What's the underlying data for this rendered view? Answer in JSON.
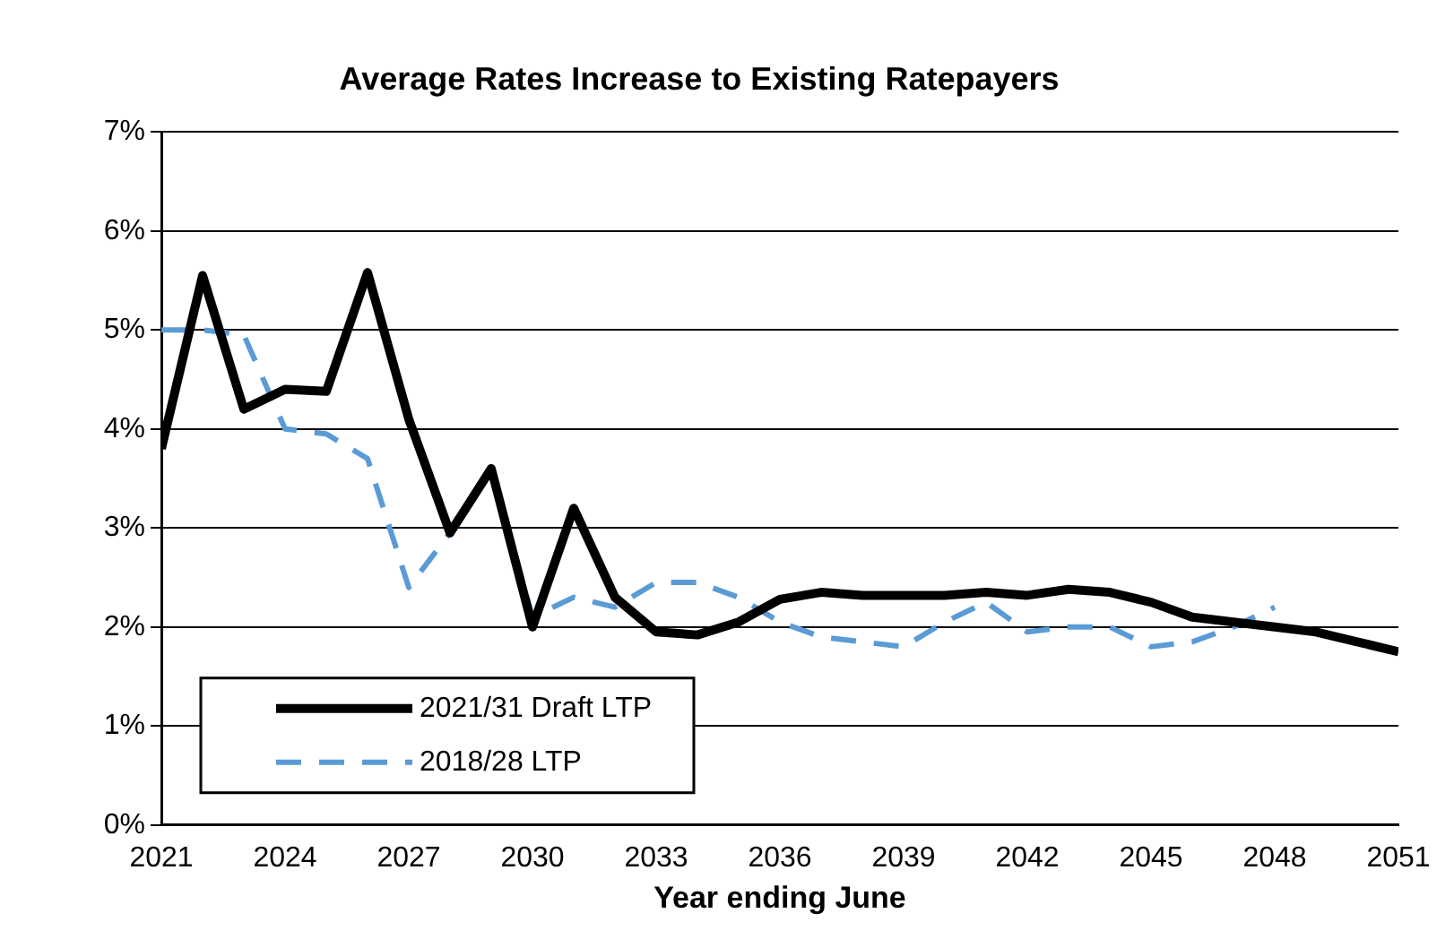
{
  "chart_data": {
    "type": "line",
    "title": "Average Rates Increase to Existing Ratepayers",
    "xlabel": "Year ending June",
    "x": [
      2021,
      2022,
      2023,
      2024,
      2025,
      2026,
      2027,
      2028,
      2029,
      2030,
      2031,
      2032,
      2033,
      2034,
      2035,
      2036,
      2037,
      2038,
      2039,
      2040,
      2041,
      2042,
      2043,
      2044,
      2045,
      2046,
      2047,
      2048,
      2049,
      2050,
      2051
    ],
    "series": [
      {
        "name": "2021/31 Draft LTP",
        "color": "#000000",
        "line_style": "solid",
        "values": [
          3.8,
          5.55,
          4.2,
          4.4,
          4.38,
          5.58,
          4.1,
          2.95,
          3.6,
          2.0,
          3.2,
          2.3,
          1.95,
          1.92,
          2.05,
          2.28,
          2.35,
          2.32,
          2.32,
          2.32,
          2.35,
          2.32,
          2.38,
          2.35,
          2.25,
          2.1,
          2.05,
          2.0,
          1.95,
          1.85,
          1.75
        ]
      },
      {
        "name": "2018/28 LTP",
        "color": "#5b9bd5",
        "line_style": "dashed",
        "values": [
          5.0,
          5.0,
          4.95,
          4.0,
          3.95,
          3.7,
          2.4,
          2.95,
          3.6,
          2.1,
          2.3,
          2.2,
          2.45,
          2.45,
          2.3,
          2.05,
          1.9,
          1.85,
          1.8,
          2.05,
          2.25,
          1.95,
          2.0,
          2.0,
          1.8,
          1.85,
          2.0,
          2.2,
          null,
          null,
          null
        ]
      }
    ],
    "xlim": [
      2021,
      2051
    ],
    "xticks": [
      2021,
      2024,
      2027,
      2030,
      2033,
      2036,
      2039,
      2042,
      2045,
      2048,
      2051
    ],
    "ylim": [
      0,
      7
    ],
    "yticks": [
      {
        "value": 0,
        "label": "0%"
      },
      {
        "value": 1,
        "label": "1%"
      },
      {
        "value": 2,
        "label": "2%"
      },
      {
        "value": 3,
        "label": "3%"
      },
      {
        "value": 4,
        "label": "4%"
      },
      {
        "value": 5,
        "label": "5%"
      },
      {
        "value": 6,
        "label": "6%"
      },
      {
        "value": 7,
        "label": "7%"
      }
    ],
    "grid": "y",
    "legend": "bottom left",
    "marker": "none"
  }
}
